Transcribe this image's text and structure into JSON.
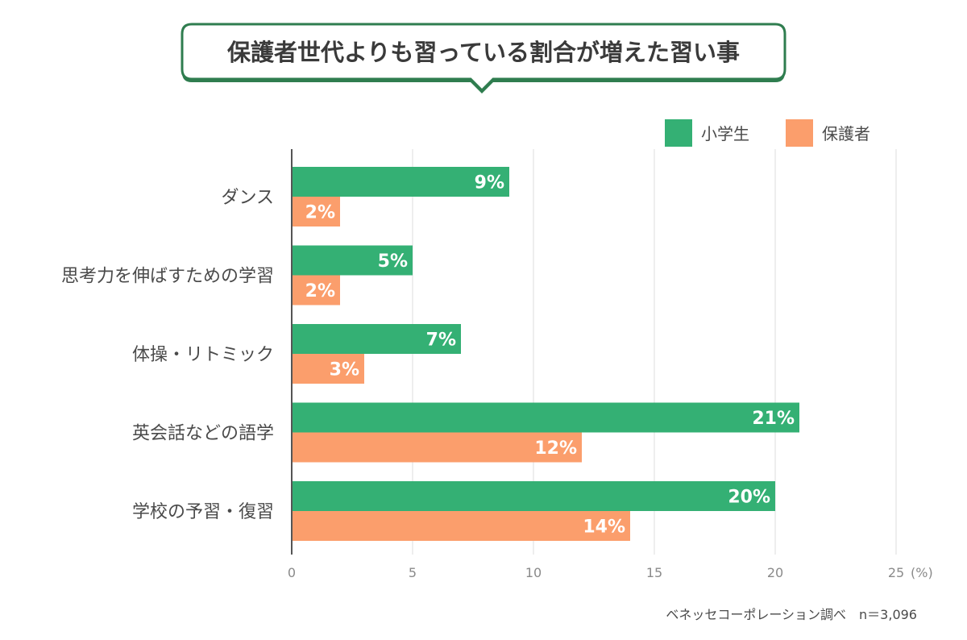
{
  "chart_data": {
    "type": "bar",
    "orientation": "horizontal",
    "title": "保護者世代よりも習っている割合が増えた習い事",
    "categories": [
      "ダンス",
      "思考力を伸ばすための学習",
      "体操・リトミック",
      "英会話などの語学",
      "学校の予習・復習"
    ],
    "series": [
      {
        "name": "小学生",
        "color": "#34b074",
        "values": [
          9,
          5,
          7,
          21,
          20
        ]
      },
      {
        "name": "保護者",
        "color": "#fb9e6c",
        "values": [
          2,
          2,
          3,
          12,
          14
        ]
      }
    ],
    "value_suffix": "%",
    "xlim": [
      0,
      25
    ],
    "xticks": [
      0,
      5,
      10,
      15,
      20,
      25
    ],
    "x_unit": "(%)",
    "grid": true,
    "legend_position": "top-right",
    "source": "ベネッセコーポレーション調べ　n＝3,096"
  },
  "colors": {
    "title_border": "#2f7d4f",
    "title_text": "#3a3a3a",
    "gridline": "#dcdcdc",
    "axis": "#555555"
  }
}
